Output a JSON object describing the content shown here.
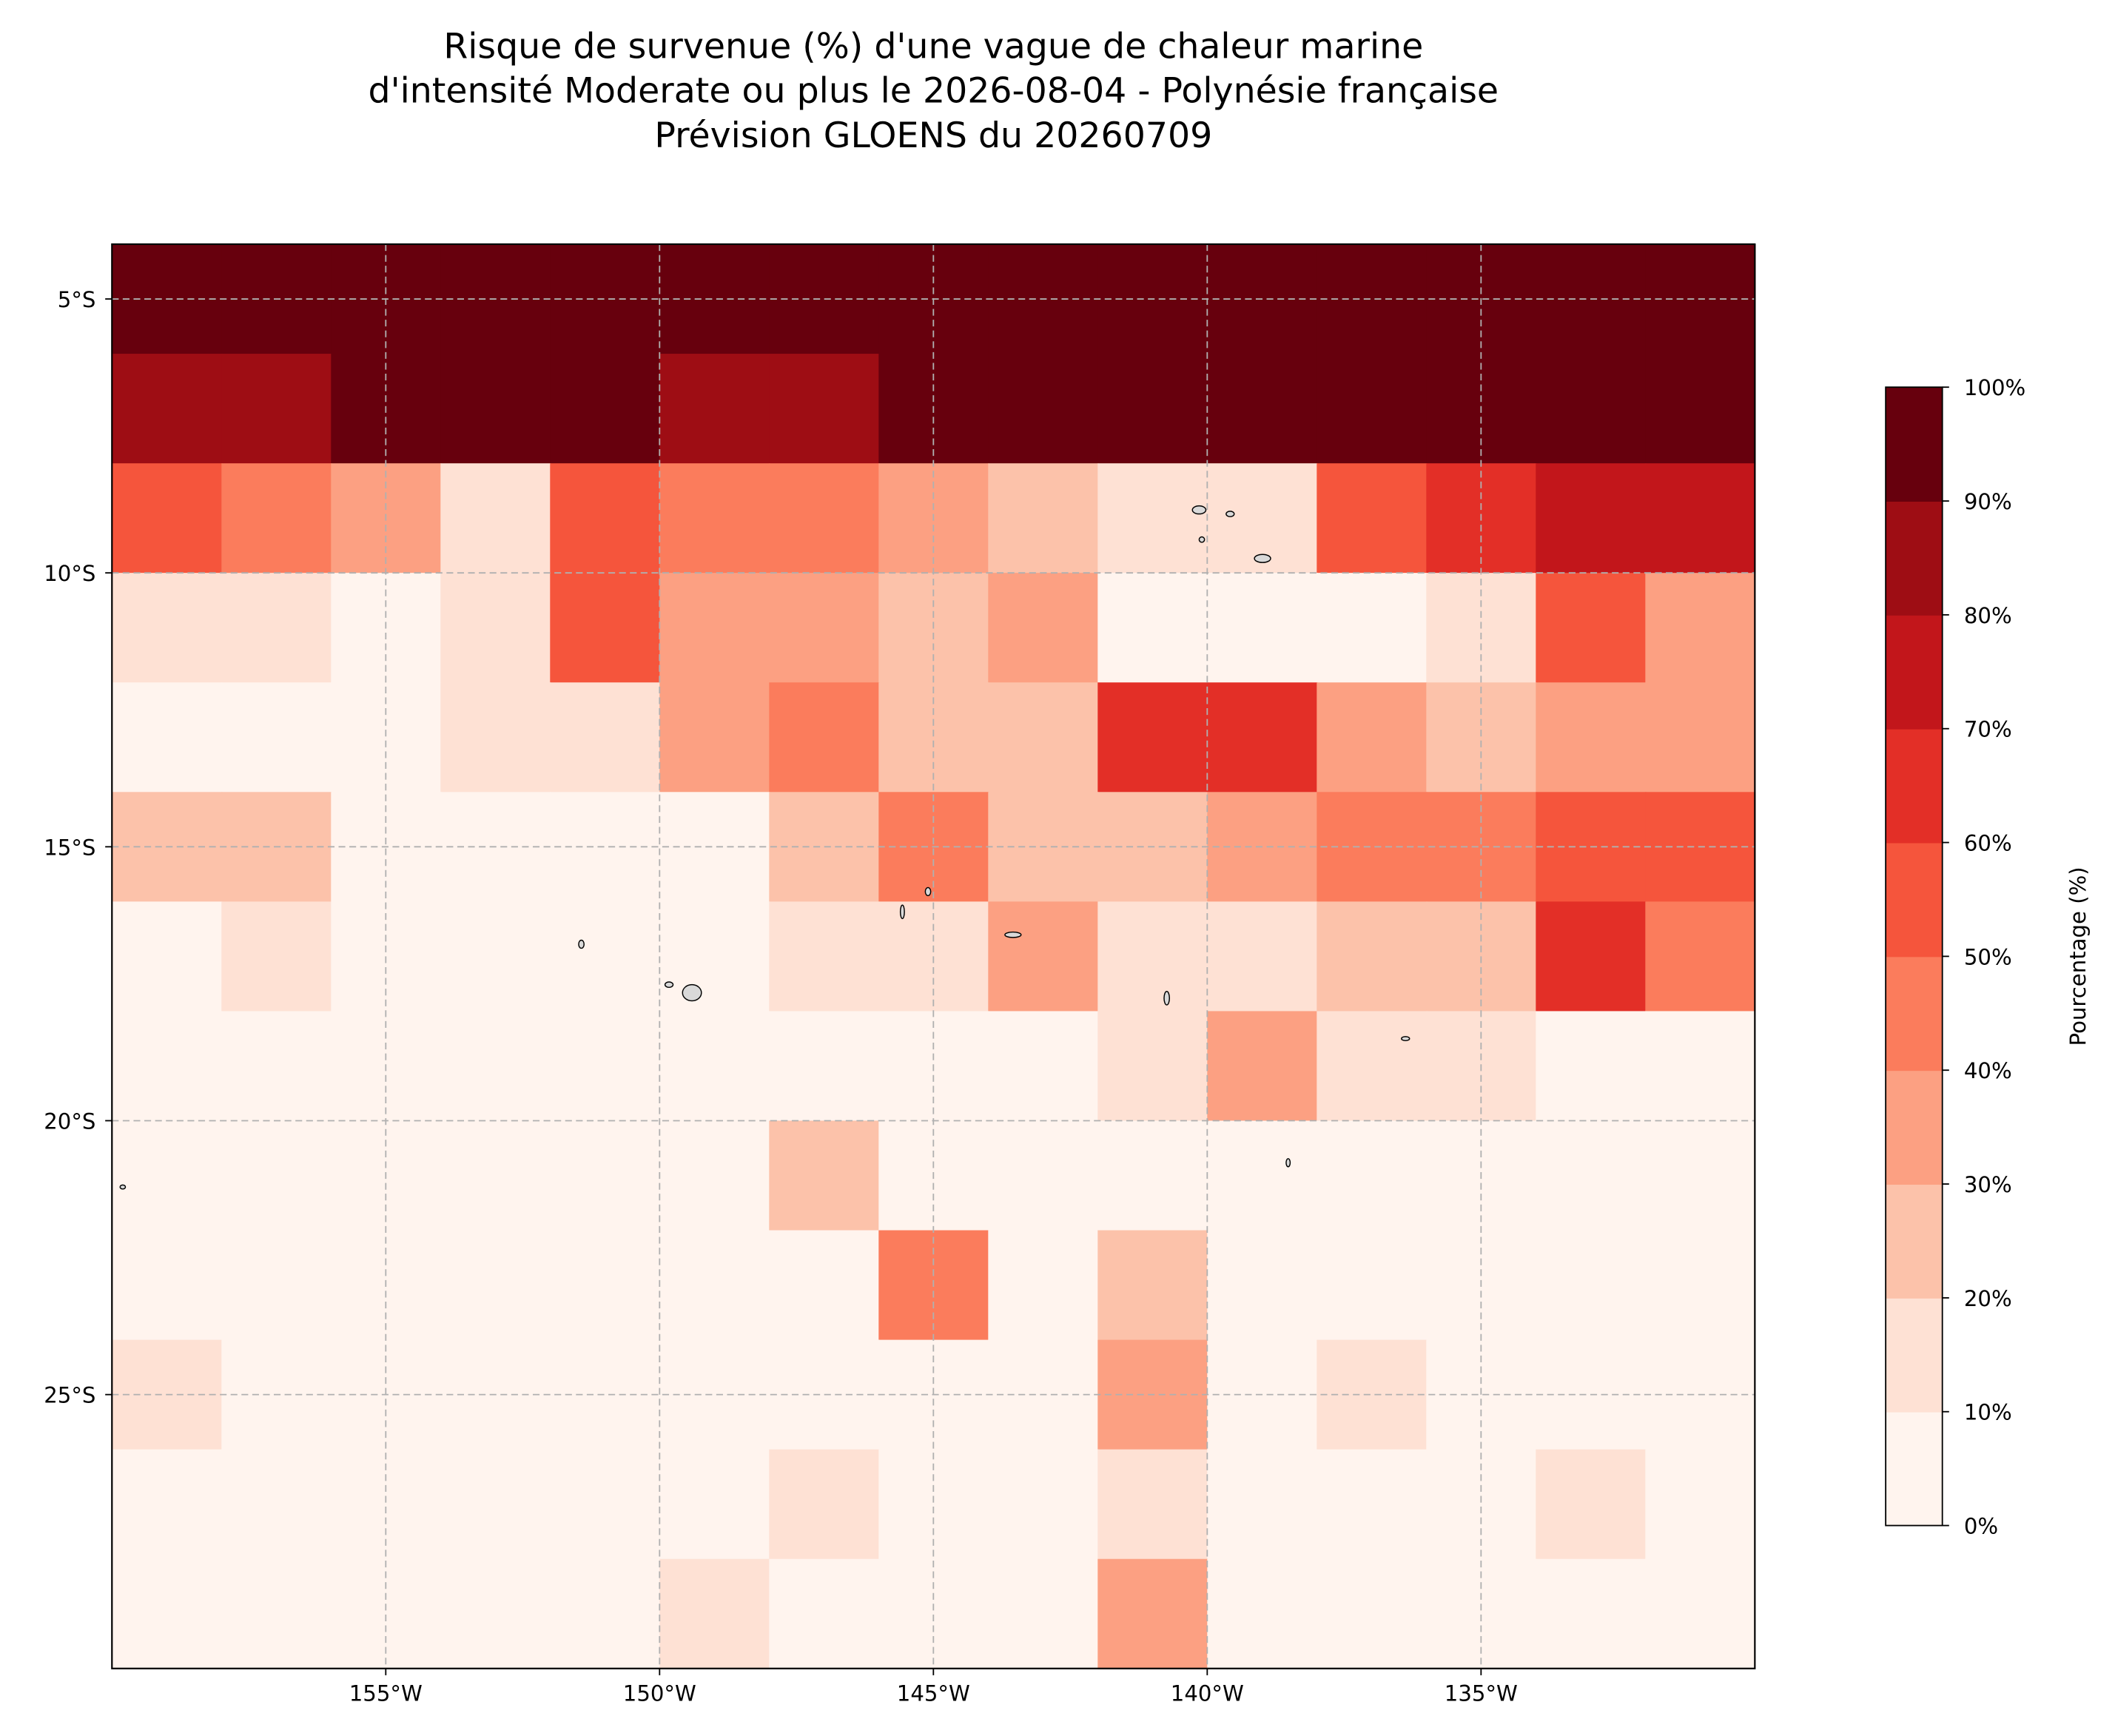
{
  "chart_data": {
    "type": "map",
    "title": [
      "Risque de survenue (%) d'une vague de chaleur marine",
      "d'intensité Moderate ou plus le 2026-08-04 - Polynésie française",
      "Prévision GLOENS du 20260709"
    ],
    "xlim": [
      -160,
      -130
    ],
    "ylim": [
      -30,
      -4
    ],
    "xticks": [
      {
        "value": -155,
        "label": "155°W"
      },
      {
        "value": -150,
        "label": "150°W"
      },
      {
        "value": -145,
        "label": "145°W"
      },
      {
        "value": -140,
        "label": "140°W"
      },
      {
        "value": -135,
        "label": "135°W"
      }
    ],
    "yticks": [
      {
        "value": -5,
        "label": "5°S"
      },
      {
        "value": -10,
        "label": "10°S"
      },
      {
        "value": -15,
        "label": "15°S"
      },
      {
        "value": -20,
        "label": "20°S"
      },
      {
        "value": -25,
        "label": "25°S"
      }
    ],
    "grid": true,
    "x": [
      -159,
      -157,
      -155,
      -153,
      -151,
      -149,
      -147,
      -145,
      -143,
      -141,
      -139,
      -137,
      -135,
      -133,
      -131
    ],
    "y": [
      -5,
      -7,
      -9,
      -11,
      -13,
      -15,
      -17,
      -19,
      -21,
      -23,
      -25,
      -27,
      -29
    ],
    "values": [
      [
        95,
        95,
        95,
        95,
        95,
        95,
        95,
        95,
        95,
        95,
        95,
        95,
        95,
        95,
        95
      ],
      [
        85,
        85,
        95,
        95,
        90,
        85,
        85,
        95,
        95,
        95,
        95,
        95,
        95,
        95,
        95
      ],
      [
        55,
        45,
        35,
        15,
        50,
        40,
        45,
        35,
        25,
        15,
        15,
        55,
        65,
        70,
        75
      ],
      [
        15,
        15,
        5,
        15,
        55,
        35,
        35,
        25,
        35,
        5,
        5,
        5,
        15,
        55,
        35
      ],
      [
        5,
        5,
        5,
        15,
        15,
        35,
        45,
        25,
        25,
        65,
        65,
        35,
        25,
        35,
        35
      ],
      [
        25,
        25,
        5,
        5,
        5,
        5,
        25,
        45,
        25,
        25,
        35,
        45,
        45,
        55,
        55
      ],
      [
        5,
        15,
        5,
        5,
        5,
        5,
        15,
        15,
        35,
        15,
        15,
        25,
        25,
        65,
        45
      ],
      [
        5,
        5,
        5,
        5,
        5,
        5,
        5,
        5,
        5,
        15,
        35,
        15,
        15,
        5,
        5
      ],
      [
        5,
        5,
        5,
        5,
        5,
        5,
        25,
        5,
        5,
        5,
        5,
        5,
        5,
        5,
        5
      ],
      [
        5,
        5,
        5,
        5,
        5,
        5,
        5,
        45,
        5,
        25,
        5,
        5,
        5,
        5,
        5
      ],
      [
        15,
        5,
        5,
        5,
        5,
        5,
        5,
        5,
        5,
        35,
        5,
        15,
        5,
        5,
        5
      ],
      [
        5,
        5,
        5,
        5,
        5,
        5,
        15,
        5,
        5,
        15,
        5,
        5,
        5,
        15,
        5
      ],
      [
        5,
        5,
        5,
        5,
        5,
        15,
        5,
        5,
        5,
        35,
        5,
        5,
        5,
        5,
        5
      ]
    ],
    "colorbar": {
      "label": "Pourcentage (%)",
      "lim": [
        0,
        100
      ],
      "colors": [
        "#fff4ee",
        "#fee1d4",
        "#fcc2aa",
        "#fca082",
        "#fb7c5c",
        "#f5553c",
        "#e32f27",
        "#c2161b",
        "#9e0d14",
        "#67000d"
      ],
      "ticks": [
        {
          "value": 0,
          "label": "0%"
        },
        {
          "value": 10,
          "label": "10%"
        },
        {
          "value": 20,
          "label": "20%"
        },
        {
          "value": 30,
          "label": "30%"
        },
        {
          "value": 40,
          "label": "40%"
        },
        {
          "value": 50,
          "label": "50%"
        },
        {
          "value": 60,
          "label": "60%"
        },
        {
          "value": 70,
          "label": "70%"
        },
        {
          "value": 80,
          "label": "80%"
        },
        {
          "value": 90,
          "label": "90%"
        },
        {
          "value": 100,
          "label": "100%"
        }
      ]
    }
  }
}
